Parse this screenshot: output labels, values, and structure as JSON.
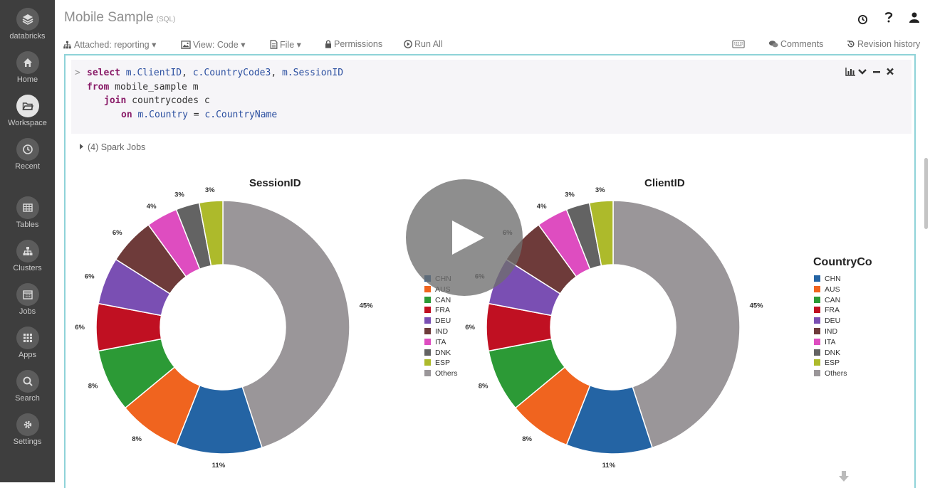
{
  "sidebar": {
    "items": [
      {
        "label": "databricks",
        "icon": "layers-icon",
        "name": "databricks"
      },
      {
        "label": "Home",
        "icon": "home-icon",
        "name": "home"
      },
      {
        "label": "Workspace",
        "icon": "folder-icon",
        "name": "workspace"
      },
      {
        "label": "Recent",
        "icon": "clock-icon",
        "name": "recent"
      },
      {
        "label": "Tables",
        "icon": "table-icon",
        "name": "tables"
      },
      {
        "label": "Clusters",
        "icon": "cluster-icon",
        "name": "clusters"
      },
      {
        "label": "Jobs",
        "icon": "calendar-icon",
        "name": "jobs"
      },
      {
        "label": "Apps",
        "icon": "grid-icon",
        "name": "apps"
      },
      {
        "label": "Search",
        "icon": "search-icon",
        "name": "search"
      },
      {
        "label": "Settings",
        "icon": "gear-icon",
        "name": "settings"
      }
    ]
  },
  "header": {
    "title": "Mobile Sample",
    "lang": "(SQL)"
  },
  "toolbar": {
    "attached": "Attached: reporting",
    "view": "View: Code",
    "file": "File",
    "permissions": "Permissions",
    "run_all": "Run All",
    "comments": "Comments",
    "revision_history": "Revision history"
  },
  "cell": {
    "prompt": ">",
    "code": {
      "l1_kw": "select",
      "l1_a": "m.ClientID",
      "l1_b": "c.CountryCode3",
      "l1_c": "m.SessionID",
      "l2_kw": "from",
      "l2_rest": "mobile_sample m",
      "l3_kw": "join",
      "l3_rest": "countrycodes c",
      "l4_kw": "on",
      "l4_a": "m.Country",
      "l4_eq": "=",
      "l4_b": "c.CountryName"
    },
    "spark_jobs": "(4) Spark Jobs"
  },
  "legend": {
    "title": "CountryCo",
    "items": [
      {
        "label": "CHN",
        "color": "#2464a4"
      },
      {
        "label": "AUS",
        "color": "#f0641f"
      },
      {
        "label": "CAN",
        "color": "#2c9a36"
      },
      {
        "label": "FRA",
        "color": "#c01022"
      },
      {
        "label": "DEU",
        "color": "#7a4fb3"
      },
      {
        "label": "IND",
        "color": "#6e3b3a"
      },
      {
        "label": "ITA",
        "color": "#de4dc0"
      },
      {
        "label": "DNK",
        "color": "#636363"
      },
      {
        "label": "ESP",
        "color": "#adba2b"
      },
      {
        "label": "Others",
        "color": "#9a9699"
      }
    ]
  },
  "chart_data": [
    {
      "type": "pie",
      "title": "SessionID",
      "categories": [
        "CHN",
        "AUS",
        "CAN",
        "FRA",
        "DEU",
        "IND",
        "ITA",
        "DNK",
        "ESP",
        "Others"
      ],
      "values": [
        11,
        8,
        8,
        6,
        6,
        6,
        4,
        3,
        3,
        45
      ],
      "labels": [
        "11%",
        "8%",
        "8%",
        "6%",
        "6%",
        "6%",
        "4%",
        "3%",
        "3%",
        "45%"
      ],
      "donut": true
    },
    {
      "type": "pie",
      "title": "ClientID",
      "categories": [
        "CHN",
        "AUS",
        "CAN",
        "FRA",
        "DEU",
        "IND",
        "ITA",
        "DNK",
        "ESP",
        "Others"
      ],
      "values": [
        11,
        8,
        8,
        6,
        6,
        6,
        4,
        3,
        3,
        45
      ],
      "labels": [
        "11%",
        "8%",
        "8%",
        "6%",
        "6%",
        "6%",
        "4%",
        "3%",
        "3%",
        "45%"
      ],
      "donut": true
    }
  ]
}
